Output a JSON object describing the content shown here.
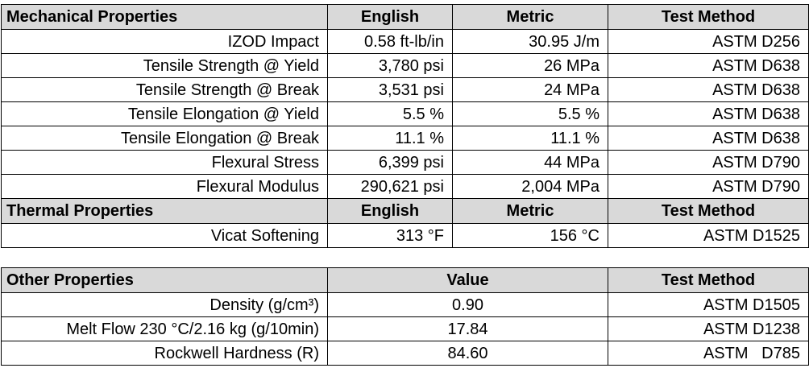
{
  "table1": {
    "mechanical_header": {
      "property": "Mechanical Properties",
      "english": "English",
      "metric": "Metric",
      "test_method": "Test Method"
    },
    "mechanical_rows": [
      {
        "property": "IZOD Impact",
        "english": "0.58 ft-lb/in",
        "metric": "30.95 J/m",
        "test_method": "ASTM D256"
      },
      {
        "property": "Tensile Strength @ Yield",
        "english": "3,780 psi",
        "metric": "26 MPa",
        "test_method": "ASTM D638"
      },
      {
        "property": "Tensile Strength @ Break",
        "english": "3,531 psi",
        "metric": "24 MPa",
        "test_method": "ASTM D638"
      },
      {
        "property": "Tensile Elongation @ Yield",
        "english": "5.5 %",
        "metric": "5.5 %",
        "test_method": "ASTM D638"
      },
      {
        "property": "Tensile Elongation @ Break",
        "english": "11.1 %",
        "metric": "11.1 %",
        "test_method": "ASTM D638"
      },
      {
        "property": "Flexural Stress",
        "english": "6,399 psi",
        "metric": "44 MPa",
        "test_method": "ASTM D790"
      },
      {
        "property": "Flexural Modulus",
        "english": "290,621 psi",
        "metric": "2,004 MPa",
        "test_method": "ASTM D790"
      }
    ],
    "thermal_header": {
      "property": "Thermal Properties",
      "english": "English",
      "metric": "Metric",
      "test_method": "Test Method"
    },
    "thermal_rows": [
      {
        "property": "Vicat Softening",
        "english": "313 °F",
        "metric": "156 °C",
        "test_method": "ASTM D1525"
      }
    ]
  },
  "table2": {
    "header": {
      "property": "Other Properties",
      "value": "Value",
      "test_method": "Test Method"
    },
    "rows": [
      {
        "property": "Density (g/cm³)",
        "value": "0.90",
        "test_method": "ASTM D1505"
      },
      {
        "property": "Melt Flow 230 °C/2.16 kg (g/10min)",
        "value": "17.84",
        "test_method": "ASTM D1238"
      },
      {
        "property": "Rockwell Hardness (R)",
        "value": "84.60",
        "test_method": "ASTM   D785"
      }
    ]
  },
  "colors": {
    "header_bg": "#d9d9d9",
    "border": "#000000"
  }
}
